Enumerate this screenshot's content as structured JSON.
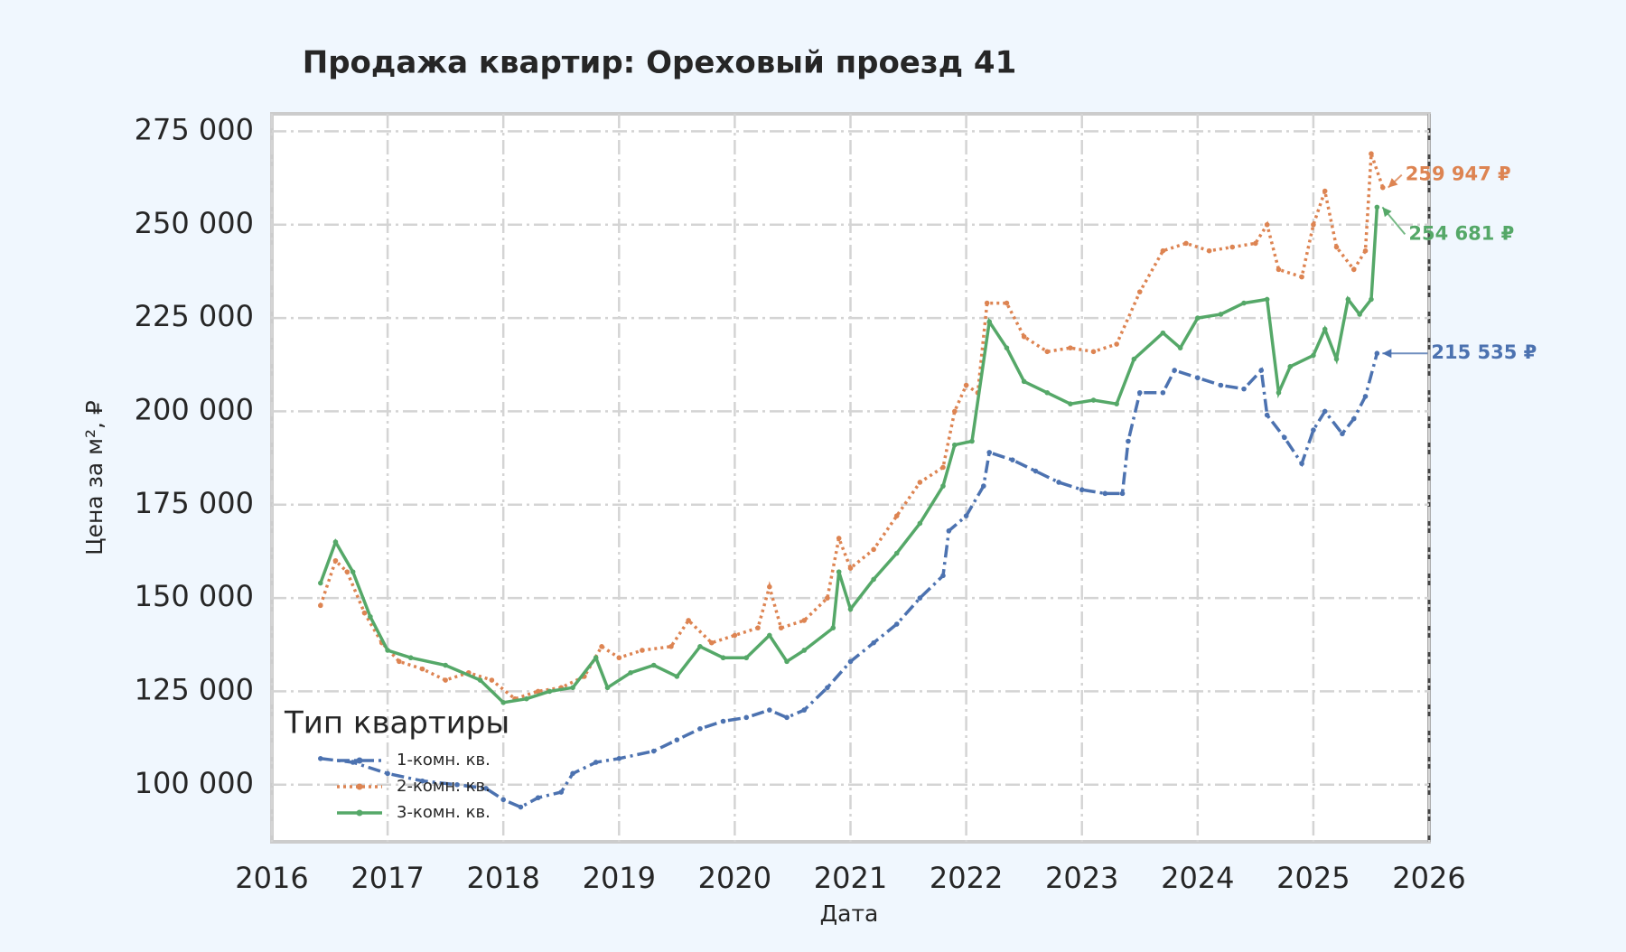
{
  "chart_data": {
    "type": "line",
    "title": "Продажа квартир: Ореховый проезд 41",
    "x_label": "Дата",
    "y_label": "Цена за м², ₽",
    "legend_title": "Тип квартиры",
    "legend_position": "lower left",
    "grid": true,
    "xlim": [
      2016,
      2026
    ],
    "xticks": [
      2016,
      2017,
      2018,
      2019,
      2020,
      2021,
      2022,
      2023,
      2024,
      2025,
      2026
    ],
    "ylim": [
      84700,
      279700
    ],
    "yticks": [
      {
        "value": 100000,
        "label": "100 000"
      },
      {
        "value": 125000,
        "label": "125 000"
      },
      {
        "value": 150000,
        "label": "150 000"
      },
      {
        "value": 175000,
        "label": "175 000"
      },
      {
        "value": 200000,
        "label": "200 000"
      },
      {
        "value": 225000,
        "label": "225 000"
      },
      {
        "value": 250000,
        "label": "250 000"
      },
      {
        "value": 275000,
        "label": "275 000"
      }
    ],
    "series": [
      {
        "name": "1-комн. кв.",
        "color": "#4c72b0",
        "linestyle": "dashdot",
        "x": [
          2016.42,
          2016.7,
          2017.0,
          2017.3,
          2017.6,
          2017.85,
          2018.0,
          2018.15,
          2018.3,
          2018.5,
          2018.6,
          2018.8,
          2019.0,
          2019.3,
          2019.5,
          2019.7,
          2019.9,
          2020.1,
          2020.3,
          2020.45,
          2020.6,
          2020.8,
          2021.0,
          2021.2,
          2021.4,
          2021.6,
          2021.8,
          2021.85,
          2022.0,
          2022.15,
          2022.2,
          2022.4,
          2022.6,
          2022.8,
          2023.0,
          2023.2,
          2023.35,
          2023.4,
          2023.5,
          2023.7,
          2023.8,
          2024.0,
          2024.2,
          2024.4,
          2024.55,
          2024.6,
          2024.75,
          2024.9,
          2025.0,
          2025.1,
          2025.25,
          2025.35,
          2025.45,
          2025.55
        ],
        "values": [
          107000,
          106000,
          103000,
          101000,
          100000,
          99000,
          96000,
          94000,
          96500,
          98000,
          103000,
          106000,
          107000,
          109000,
          112000,
          115000,
          117000,
          118000,
          120000,
          118000,
          120000,
          126000,
          133000,
          138000,
          143000,
          150000,
          156000,
          168000,
          172000,
          180000,
          189000,
          187000,
          184000,
          181000,
          179000,
          178000,
          178000,
          192000,
          205000,
          205000,
          211000,
          209000,
          207000,
          206000,
          211000,
          199000,
          193000,
          186000,
          195000,
          200000,
          194000,
          198000,
          204000,
          215535
        ],
        "annotation": {
          "value": 215535,
          "label": "215 535 ₽"
        }
      },
      {
        "name": "2-комн. кв.",
        "color": "#dd8452",
        "linestyle": "dotted",
        "x": [
          2016.42,
          2016.55,
          2016.65,
          2016.8,
          2016.95,
          2017.1,
          2017.3,
          2017.5,
          2017.7,
          2017.9,
          2018.1,
          2018.3,
          2018.5,
          2018.7,
          2018.85,
          2019.0,
          2019.2,
          2019.45,
          2019.6,
          2019.8,
          2020.0,
          2020.2,
          2020.3,
          2020.4,
          2020.6,
          2020.8,
          2020.9,
          2021.0,
          2021.2,
          2021.4,
          2021.6,
          2021.8,
          2021.9,
          2022.0,
          2022.1,
          2022.18,
          2022.35,
          2022.5,
          2022.7,
          2022.9,
          2023.1,
          2023.3,
          2023.5,
          2023.7,
          2023.9,
          2024.1,
          2024.3,
          2024.5,
          2024.6,
          2024.7,
          2024.9,
          2025.0,
          2025.1,
          2025.2,
          2025.35,
          2025.45,
          2025.5,
          2025.6
        ],
        "values": [
          148000,
          160000,
          157000,
          146000,
          138000,
          133000,
          131000,
          128000,
          130000,
          128000,
          123000,
          125000,
          126000,
          129000,
          137000,
          134000,
          136000,
          137000,
          144000,
          138000,
          140000,
          142000,
          153000,
          142000,
          144000,
          150000,
          166000,
          158000,
          163000,
          172000,
          181000,
          185000,
          200000,
          207000,
          205000,
          229000,
          229000,
          220000,
          216000,
          217000,
          216000,
          218000,
          232000,
          243000,
          245000,
          243000,
          244000,
          245000,
          250000,
          238000,
          236000,
          250000,
          259000,
          244000,
          238000,
          243000,
          269000,
          259947
        ],
        "annotation": {
          "value": 259947,
          "label": "259 947 ₽"
        }
      },
      {
        "name": "3-комн. кв.",
        "color": "#55a868",
        "linestyle": "solid",
        "x": [
          2016.42,
          2016.55,
          2016.7,
          2016.85,
          2017.0,
          2017.2,
          2017.5,
          2017.8,
          2018.0,
          2018.2,
          2018.4,
          2018.6,
          2018.8,
          2018.9,
          2019.1,
          2019.3,
          2019.5,
          2019.7,
          2019.9,
          2020.1,
          2020.3,
          2020.45,
          2020.6,
          2020.85,
          2020.9,
          2021.0,
          2021.2,
          2021.4,
          2021.6,
          2021.8,
          2021.9,
          2022.05,
          2022.2,
          2022.35,
          2022.5,
          2022.7,
          2022.9,
          2023.1,
          2023.3,
          2023.45,
          2023.7,
          2023.85,
          2024.0,
          2024.2,
          2024.4,
          2024.6,
          2024.7,
          2024.8,
          2025.0,
          2025.1,
          2025.2,
          2025.3,
          2025.4,
          2025.5,
          2025.55
        ],
        "values": [
          154000,
          165000,
          157000,
          145000,
          136000,
          134000,
          132000,
          128000,
          122000,
          123000,
          125000,
          126000,
          134000,
          126000,
          130000,
          132000,
          129000,
          137000,
          134000,
          134000,
          140000,
          133000,
          136000,
          142000,
          157000,
          147000,
          155000,
          162000,
          170000,
          180000,
          191000,
          192000,
          224000,
          217000,
          208000,
          205000,
          202000,
          203000,
          202000,
          214000,
          221000,
          217000,
          225000,
          226000,
          229000,
          230000,
          205000,
          212000,
          215000,
          222000,
          214000,
          230000,
          226000,
          230000,
          254681
        ],
        "annotation": {
          "value": 254681,
          "label": "254 681 ₽"
        }
      }
    ]
  }
}
